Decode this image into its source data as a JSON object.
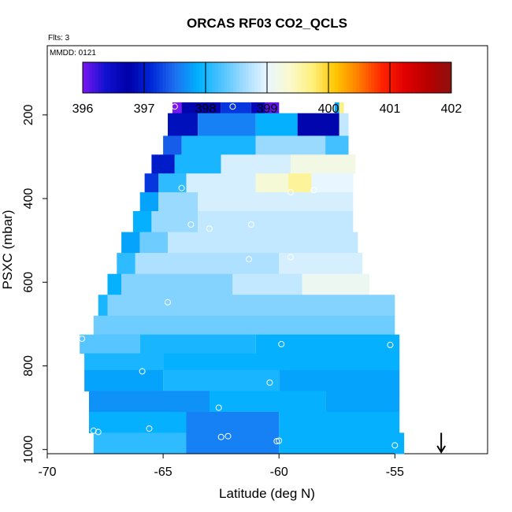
{
  "chart_data": {
    "type": "heatmap",
    "title": "ORCAS RF03 CO2_QCLS",
    "flights_note": "Flts: 3",
    "date_note": "MMDD: 0121",
    "xlabel": "Latitude (deg N)",
    "ylabel": "PSXC (mbar)",
    "xlim": [
      -70,
      -51
    ],
    "ylim": [
      1010,
      140
    ],
    "x_ticks": [
      -70,
      -65,
      -60,
      -55
    ],
    "y_ticks": [
      200,
      400,
      600,
      800,
      1000
    ],
    "colorbar": {
      "min": 396,
      "max": 402,
      "ticks": [
        396,
        397,
        398,
        399,
        400,
        401,
        402
      ],
      "colors": [
        "#7a18f0",
        "#1010d0",
        "#0000a8",
        "#0028d8",
        "#1e70f0",
        "#00b0ff",
        "#4cc2ff",
        "#a0dcff",
        "#e8f6ff",
        "#fafacc",
        "#ffef7a",
        "#ffc400",
        "#ff7a00",
        "#ff2400",
        "#e00000",
        "#b80000",
        "#8c1010"
      ]
    },
    "bands": [
      {
        "p_top": 170,
        "p_bot": 196,
        "segments": [
          {
            "x0": -64.6,
            "x1": -64.2,
            "v": 396.0
          },
          {
            "x0": -64.2,
            "x1": -62.5,
            "v": 396.8
          },
          {
            "x0": -62.5,
            "x1": -61.2,
            "v": 397.2
          },
          {
            "x0": -61.2,
            "x1": -60.6,
            "v": 396.6
          },
          {
            "x0": -60.6,
            "x1": -60.0,
            "v": 396.1
          },
          {
            "x0": -57.6,
            "x1": -57.4,
            "v": 397.8
          },
          {
            "x0": -57.4,
            "x1": -57.2,
            "v": 399.7
          }
        ]
      },
      {
        "p_top": 196,
        "p_bot": 250,
        "segments": [
          {
            "x0": -64.8,
            "x1": -63.5,
            "v": 396.9
          },
          {
            "x0": -63.5,
            "x1": -61.0,
            "v": 397.6
          },
          {
            "x0": -61.0,
            "x1": -59.2,
            "v": 397.9
          },
          {
            "x0": -59.2,
            "x1": -57.4,
            "v": 396.8
          },
          {
            "x0": -57.4,
            "x1": -57.0,
            "v": 398.8
          }
        ]
      },
      {
        "p_top": 250,
        "p_bot": 295,
        "segments": [
          {
            "x0": -65.0,
            "x1": -64.2,
            "v": 397.4
          },
          {
            "x0": -64.2,
            "x1": -61.0,
            "v": 398.0
          },
          {
            "x0": -61.0,
            "x1": -58.0,
            "v": 398.6
          },
          {
            "x0": -58.0,
            "x1": -57.0,
            "v": 398.2
          }
        ]
      },
      {
        "p_top": 295,
        "p_bot": 340,
        "segments": [
          {
            "x0": -65.5,
            "x1": -64.5,
            "v": 397.0
          },
          {
            "x0": -64.5,
            "x1": -62.5,
            "v": 398.0
          },
          {
            "x0": -62.5,
            "x1": -59.5,
            "v": 398.9
          },
          {
            "x0": -59.5,
            "x1": -56.7,
            "v": 399.2
          }
        ]
      },
      {
        "p_top": 340,
        "p_bot": 385,
        "segments": [
          {
            "x0": -65.8,
            "x1": -65.2,
            "v": 397.2
          },
          {
            "x0": -65.2,
            "x1": -64.0,
            "v": 398.1
          },
          {
            "x0": -64.0,
            "x1": -61.0,
            "v": 398.9
          },
          {
            "x0": -61.0,
            "x1": -59.6,
            "v": 399.3
          },
          {
            "x0": -59.6,
            "x1": -58.6,
            "v": 399.6
          },
          {
            "x0": -58.6,
            "x1": -56.8,
            "v": 399.0
          }
        ]
      },
      {
        "p_top": 385,
        "p_bot": 430,
        "segments": [
          {
            "x0": -66.0,
            "x1": -65.2,
            "v": 397.8
          },
          {
            "x0": -65.2,
            "x1": -63.5,
            "v": 398.6
          },
          {
            "x0": -63.5,
            "x1": -56.8,
            "v": 398.9
          }
        ]
      },
      {
        "p_top": 430,
        "p_bot": 480,
        "segments": [
          {
            "x0": -66.3,
            "x1": -65.5,
            "v": 397.9
          },
          {
            "x0": -65.5,
            "x1": -63.5,
            "v": 398.6
          },
          {
            "x0": -63.5,
            "x1": -56.8,
            "v": 398.8
          }
        ]
      },
      {
        "p_top": 480,
        "p_bot": 530,
        "segments": [
          {
            "x0": -66.8,
            "x1": -66.0,
            "v": 397.8
          },
          {
            "x0": -66.0,
            "x1": -64.8,
            "v": 398.4
          },
          {
            "x0": -64.8,
            "x1": -56.6,
            "v": 398.8
          }
        ]
      },
      {
        "p_top": 530,
        "p_bot": 580,
        "segments": [
          {
            "x0": -67.0,
            "x1": -66.2,
            "v": 398.1
          },
          {
            "x0": -66.2,
            "x1": -60.0,
            "v": 398.7
          },
          {
            "x0": -60.0,
            "x1": -56.4,
            "v": 398.9
          }
        ]
      },
      {
        "p_top": 580,
        "p_bot": 630,
        "segments": [
          {
            "x0": -67.4,
            "x1": -66.8,
            "v": 397.9
          },
          {
            "x0": -66.8,
            "x1": -62.0,
            "v": 398.5
          },
          {
            "x0": -62.0,
            "x1": -59.0,
            "v": 398.8
          },
          {
            "x0": -59.0,
            "x1": -56.1,
            "v": 399.1
          }
        ]
      },
      {
        "p_top": 630,
        "p_bot": 680,
        "segments": [
          {
            "x0": -67.8,
            "x1": -67.4,
            "v": 398.0
          },
          {
            "x0": -67.4,
            "x1": -55.0,
            "v": 398.5
          }
        ]
      },
      {
        "p_top": 680,
        "p_bot": 725,
        "segments": [
          {
            "x0": -68.0,
            "x1": -55.0,
            "v": 398.4
          }
        ]
      },
      {
        "p_top": 725,
        "p_bot": 770,
        "segments": [
          {
            "x0": -68.6,
            "x1": -66.0,
            "v": 398.3
          },
          {
            "x0": -66.0,
            "x1": -61.0,
            "v": 398.0
          },
          {
            "x0": -61.0,
            "x1": -54.8,
            "v": 397.9
          }
        ]
      },
      {
        "p_top": 770,
        "p_bot": 810,
        "segments": [
          {
            "x0": -68.4,
            "x1": -65.0,
            "v": 398.0
          },
          {
            "x0": -65.0,
            "x1": -54.8,
            "v": 397.9
          }
        ]
      },
      {
        "p_top": 810,
        "p_bot": 860,
        "segments": [
          {
            "x0": -68.4,
            "x1": -65.0,
            "v": 397.8
          },
          {
            "x0": -65.0,
            "x1": -60.0,
            "v": 398.0
          },
          {
            "x0": -60.0,
            "x1": -54.8,
            "v": 397.8
          }
        ]
      },
      {
        "p_top": 860,
        "p_bot": 910,
        "segments": [
          {
            "x0": -68.2,
            "x1": -63.0,
            "v": 397.7
          },
          {
            "x0": -63.0,
            "x1": -58.0,
            "v": 397.9
          },
          {
            "x0": -58.0,
            "x1": -54.8,
            "v": 397.8
          }
        ]
      },
      {
        "p_top": 910,
        "p_bot": 960,
        "segments": [
          {
            "x0": -68.2,
            "x1": -64.0,
            "v": 397.9
          },
          {
            "x0": -64.0,
            "x1": -60.0,
            "v": 397.6
          },
          {
            "x0": -60.0,
            "x1": -54.8,
            "v": 397.9
          }
        ]
      },
      {
        "p_top": 960,
        "p_bot": 1010,
        "segments": [
          {
            "x0": -68.0,
            "x1": -64.0,
            "v": 398.1
          },
          {
            "x0": -64.0,
            "x1": -60.0,
            "v": 397.6
          },
          {
            "x0": -60.0,
            "x1": -54.6,
            "v": 397.9
          }
        ]
      }
    ],
    "points": [
      {
        "x": -64.5,
        "y": 180
      },
      {
        "x": -62.0,
        "y": 180
      },
      {
        "x": -64.2,
        "y": 375
      },
      {
        "x": -59.5,
        "y": 385
      },
      {
        "x": -58.5,
        "y": 380
      },
      {
        "x": -56.6,
        "y": 388
      },
      {
        "x": -63.8,
        "y": 462
      },
      {
        "x": -63.0,
        "y": 472
      },
      {
        "x": -61.2,
        "y": 462
      },
      {
        "x": -61.3,
        "y": 545
      },
      {
        "x": -59.5,
        "y": 540
      },
      {
        "x": -56.2,
        "y": 545
      },
      {
        "x": -64.8,
        "y": 648
      },
      {
        "x": -68.5,
        "y": 735
      },
      {
        "x": -59.9,
        "y": 748
      },
      {
        "x": -55.2,
        "y": 750
      },
      {
        "x": -65.9,
        "y": 813
      },
      {
        "x": -60.4,
        "y": 840
      },
      {
        "x": -62.6,
        "y": 900
      },
      {
        "x": -68.0,
        "y": 955
      },
      {
        "x": -67.8,
        "y": 958
      },
      {
        "x": -65.6,
        "y": 950
      },
      {
        "x": -62.5,
        "y": 970
      },
      {
        "x": -62.2,
        "y": 968
      },
      {
        "x": -60.1,
        "y": 980
      },
      {
        "x": -60.0,
        "y": 979
      },
      {
        "x": -55.0,
        "y": 990
      }
    ],
    "arrow": {
      "x": -53.0,
      "y_top": 960,
      "y_bot": 1010
    }
  }
}
